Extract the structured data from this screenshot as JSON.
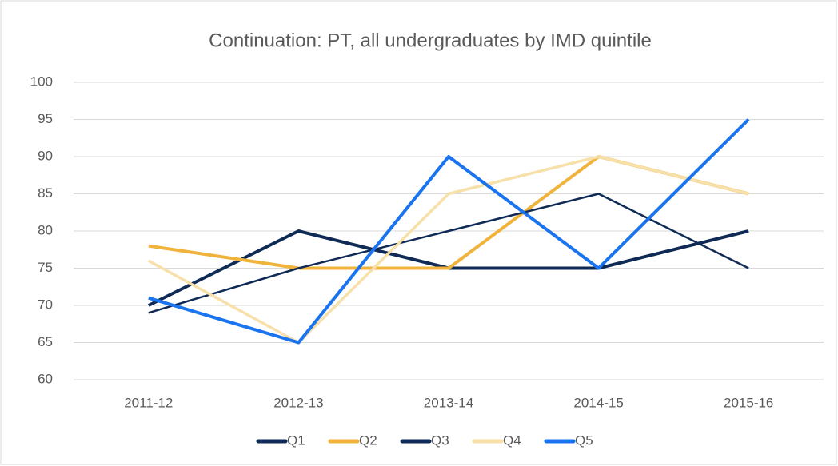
{
  "chart_data": {
    "type": "line",
    "title": "Continuation: PT, all undergraduates by IMD quintile",
    "categories": [
      "2011-12",
      "2012-13",
      "2013-14",
      "2014-15",
      "2015-16"
    ],
    "series": [
      {
        "name": "Q1",
        "color": "#0f2a55",
        "line_width": 4,
        "values": [
          70,
          80,
          75,
          75,
          80
        ]
      },
      {
        "name": "Q2",
        "color": "#f0b33c",
        "line_width": 4,
        "values": [
          78,
          75,
          75,
          90,
          85
        ]
      },
      {
        "name": "Q3",
        "color": "#0f2a55",
        "line_width": 2.5,
        "values": [
          69,
          75,
          80,
          85,
          75
        ]
      },
      {
        "name": "Q4",
        "color": "#f7e0aa",
        "line_width": 3.5,
        "values": [
          76,
          65,
          85,
          90,
          85
        ]
      },
      {
        "name": "Q5",
        "color": "#1a74f0",
        "line_width": 4,
        "values": [
          71,
          65,
          90,
          75,
          95
        ]
      }
    ],
    "ylim": [
      60,
      100
    ],
    "yticks": [
      60,
      65,
      70,
      75,
      80,
      85,
      90,
      95,
      100
    ],
    "grid": true,
    "legend": "bottom"
  }
}
